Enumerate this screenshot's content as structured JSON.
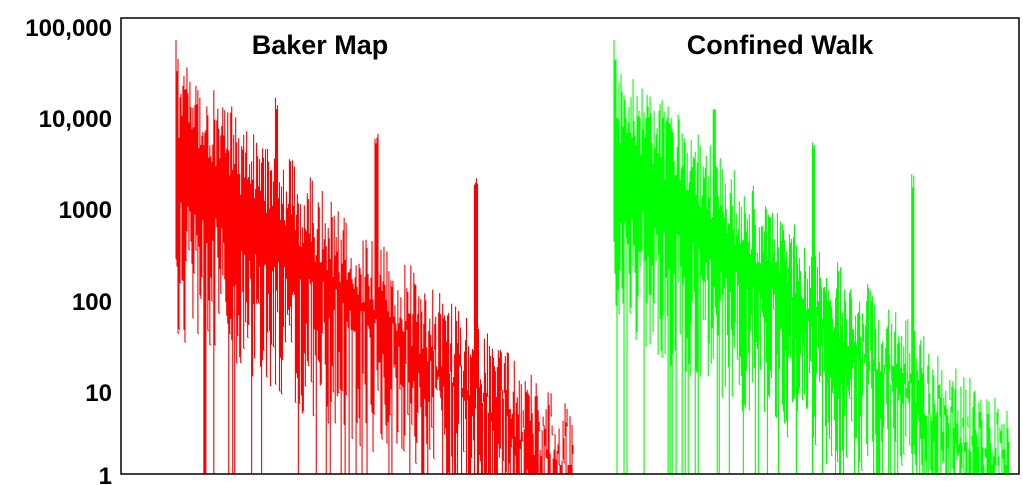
{
  "chart_data": {
    "type": "bar",
    "title": "",
    "xlabel": "",
    "ylabel": "",
    "yscale": "log",
    "ylim": [
      1,
      100000
    ],
    "y_ticks": [
      "100,000",
      "10,000",
      "1000",
      "100",
      "10",
      "1"
    ],
    "grid": false,
    "legend": "none",
    "panels": [
      {
        "title": "Baker Map",
        "color": "#ff0000",
        "bar_count": 400,
        "peaks": [
          60000,
          26000,
          9500,
          3600,
          1300
        ]
      },
      {
        "title": "Confined Walk",
        "color": "#00ff00",
        "bar_count": 395,
        "peaks": [
          60000,
          26000,
          9500,
          3600,
          1300
        ]
      }
    ]
  }
}
